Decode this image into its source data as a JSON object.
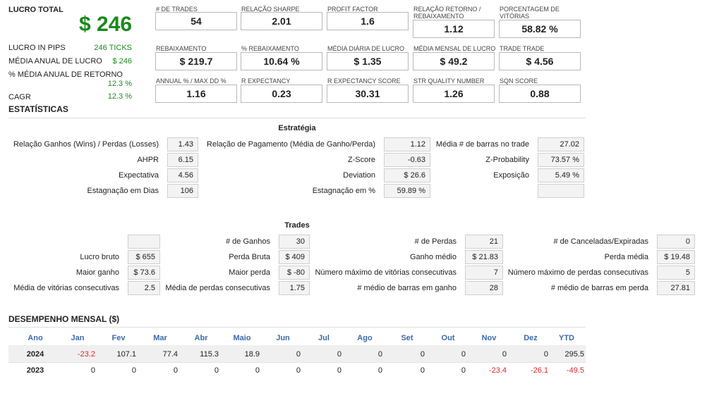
{
  "summary": {
    "lucro_total_label": "LUCRO TOTAL",
    "lucro_total_value": "$ 246",
    "rows": [
      {
        "label": "LUCRO IN PIPS",
        "value": "246 TICKS"
      },
      {
        "label": "MÉDIA ANUAL DE LUCRO",
        "value": "$ 246"
      },
      {
        "label": "% MÉDIA ANUAL DE RETORNO",
        "value": "12.3 %"
      },
      {
        "label": "CAGR",
        "value": "12.3 %"
      }
    ]
  },
  "metrics": [
    {
      "label": "# DE TRADES",
      "value": "54"
    },
    {
      "label": "RELAÇÃO SHARPE",
      "value": "2.01"
    },
    {
      "label": "PROFIT FACTOR",
      "value": "1.6"
    },
    {
      "label": "RELAÇÃO RETORNO / REBAIXAMENTO",
      "value": "1.12"
    },
    {
      "label": "PORCENTAGEM DE VITÓRIAS",
      "value": "58.82 %"
    },
    {
      "label": "REBAIXAMENTO",
      "value": "$ 219.7"
    },
    {
      "label": "% REBAIXAMENTO",
      "value": "10.64 %"
    },
    {
      "label": "MÉDIA DIÁRIA DE LUCRO",
      "value": "$ 1.35"
    },
    {
      "label": "MÉDIA MENSAL DE LUCRO",
      "value": "$ 49.2"
    },
    {
      "label": "TRADE TRADE",
      "value": "$ 4.56"
    },
    {
      "label": "ANNUAL % / MAX DD %",
      "value": "1.16"
    },
    {
      "label": "R EXPECTANCY",
      "value": "0.23"
    },
    {
      "label": "R EXPECTANCY SCORE",
      "value": "30.31"
    },
    {
      "label": "STR QUALITY NUMBER",
      "value": "1.26"
    },
    {
      "label": "SQN SCORE",
      "value": "0.88"
    }
  ],
  "estatisticas": {
    "title": "ESTATÍSTICAS",
    "estrategia_title": "Estratégia",
    "estrategia": [
      {
        "label": "Relação Ganhos (Wins) / Perdas (Losses)",
        "value": "1.43"
      },
      {
        "label": "Relação de Pagamento (Média de Ganho/Perda)",
        "value": "1.12"
      },
      {
        "label": "Média # de barras no trade",
        "value": "27.02"
      },
      {
        "label": "AHPR",
        "value": "6.15"
      },
      {
        "label": "Z-Score",
        "value": "-0.63"
      },
      {
        "label": "Z-Probability",
        "value": "73.57 %"
      },
      {
        "label": "Expectativa",
        "value": "4.56"
      },
      {
        "label": "Deviation",
        "value": "$ 26.6"
      },
      {
        "label": "Exposição",
        "value": "5.49 %"
      },
      {
        "label": "Estagnação em Dias",
        "value": "106"
      },
      {
        "label": "Estagnação em %",
        "value": "59.89 %"
      },
      {
        "label": "",
        "value": ""
      }
    ],
    "trades_title": "Trades",
    "trades": [
      {
        "label": "",
        "value": ""
      },
      {
        "label": "# de Ganhos",
        "value": "30"
      },
      {
        "label": "# de Perdas",
        "value": "21"
      },
      {
        "label": "# de Canceladas/Expiradas",
        "value": "0"
      },
      {
        "label": "Lucro bruto",
        "value": "$ 655"
      },
      {
        "label": "Perda Bruta",
        "value": "$ 409"
      },
      {
        "label": "Ganho médio",
        "value": "$ 21.83"
      },
      {
        "label": "Perda média",
        "value": "$ 19.48"
      },
      {
        "label": "Maior ganho",
        "value": "$ 73.6"
      },
      {
        "label": "Maior perda",
        "value": "$ -80"
      },
      {
        "label": "Número máximo de vitórias consecutivas",
        "value": "7"
      },
      {
        "label": "Número máximo de perdas consecutivas",
        "value": "5"
      },
      {
        "label": "Média de vitórias consecutivas",
        "value": "2.5"
      },
      {
        "label": "Média de perdas consecutivas",
        "value": "1.75"
      },
      {
        "label": "# médio de barras em ganho",
        "value": "28"
      },
      {
        "label": "# médio de barras em perda",
        "value": "27.81"
      }
    ]
  },
  "mensal": {
    "title": "DESEMPENHO MENSAL ($)",
    "headers": [
      "Ano",
      "Jan",
      "Fev",
      "Mar",
      "Abr",
      "Maio",
      "Jun",
      "Jul",
      "Ago",
      "Set",
      "Out",
      "Nov",
      "Dez",
      "YTD"
    ],
    "rows": [
      {
        "year": "2024",
        "values": [
          "-23.2",
          "107.1",
          "77.4",
          "115.3",
          "18.9",
          "0",
          "0",
          "0",
          "0",
          "0",
          "0",
          "0",
          "295.5"
        ]
      },
      {
        "year": "2023",
        "values": [
          "0",
          "0",
          "0",
          "0",
          "0",
          "0",
          "0",
          "0",
          "0",
          "0",
          "-23.4",
          "-26.1",
          "-49.5"
        ]
      }
    ]
  },
  "colors": {
    "green": "#1a8a1a",
    "red": "#e0262a",
    "header_blue": "#3a6aa8"
  }
}
